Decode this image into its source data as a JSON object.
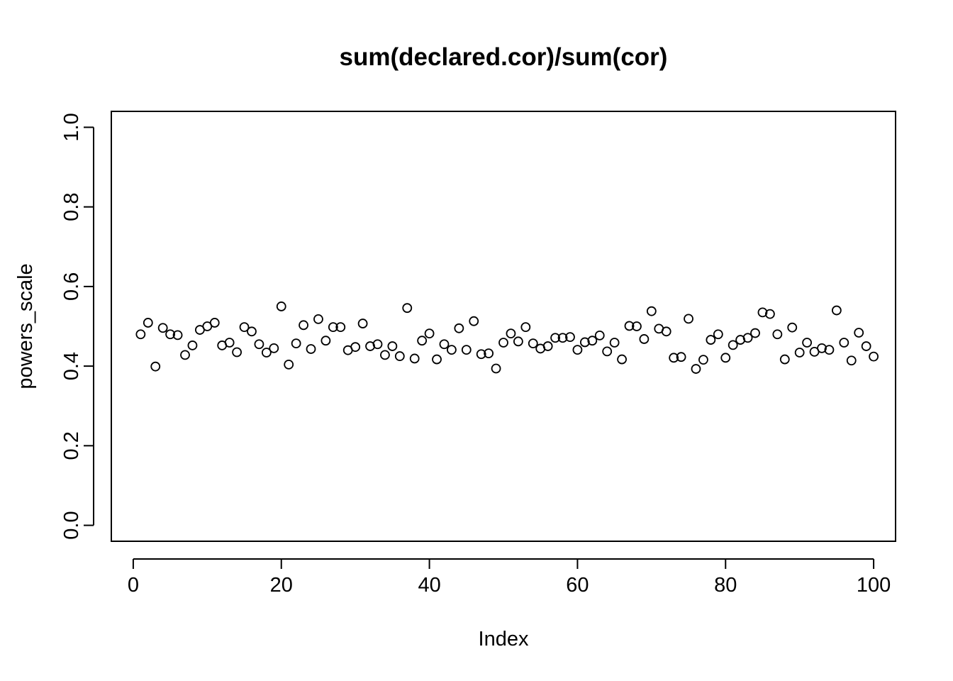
{
  "chart_data": {
    "type": "scatter",
    "title": "sum(declared.cor)/sum(cor)",
    "xlabel": "Index",
    "ylabel": "powers_scale",
    "xlim": [
      -2.96,
      102.96
    ],
    "ylim": [
      -0.04,
      1.04
    ],
    "xticks": [
      0,
      20,
      40,
      60,
      80,
      100
    ],
    "xtick_labels": [
      "0",
      "20",
      "40",
      "60",
      "80",
      "100"
    ],
    "yticks": [
      0.0,
      0.2,
      0.4,
      0.6,
      0.8,
      1.0
    ],
    "ytick_labels": [
      "0.0",
      "0.2",
      "0.4",
      "0.6",
      "0.8",
      "1.0"
    ],
    "grid": false,
    "marker": "open-circle",
    "x": [
      1,
      2,
      3,
      4,
      5,
      6,
      7,
      8,
      9,
      10,
      11,
      12,
      13,
      14,
      15,
      16,
      17,
      18,
      19,
      20,
      21,
      22,
      23,
      24,
      25,
      26,
      27,
      28,
      29,
      30,
      31,
      32,
      33,
      34,
      35,
      36,
      37,
      38,
      39,
      40,
      41,
      42,
      43,
      44,
      45,
      46,
      47,
      48,
      49,
      50,
      51,
      52,
      53,
      54,
      55,
      56,
      57,
      58,
      59,
      60,
      61,
      62,
      63,
      64,
      65,
      66,
      67,
      68,
      69,
      70,
      71,
      72,
      73,
      74,
      75,
      76,
      77,
      78,
      79,
      80,
      81,
      82,
      83,
      84,
      85,
      86,
      87,
      88,
      89,
      90,
      91,
      92,
      93,
      94,
      95,
      96,
      97,
      98,
      99,
      100
    ],
    "y": [
      0.48,
      0.509,
      0.399,
      0.496,
      0.48,
      0.478,
      0.428,
      0.452,
      0.491,
      0.5,
      0.509,
      0.452,
      0.459,
      0.435,
      0.498,
      0.487,
      0.455,
      0.434,
      0.445,
      0.55,
      0.404,
      0.457,
      0.503,
      0.443,
      0.518,
      0.464,
      0.498,
      0.498,
      0.44,
      0.448,
      0.507,
      0.45,
      0.455,
      0.428,
      0.45,
      0.425,
      0.546,
      0.419,
      0.464,
      0.482,
      0.417,
      0.455,
      0.441,
      0.495,
      0.441,
      0.513,
      0.43,
      0.432,
      0.394,
      0.459,
      0.482,
      0.462,
      0.498,
      0.457,
      0.444,
      0.45,
      0.471,
      0.471,
      0.473,
      0.441,
      0.46,
      0.464,
      0.477,
      0.437,
      0.459,
      0.417,
      0.501,
      0.5,
      0.468,
      0.538,
      0.494,
      0.487,
      0.421,
      0.423,
      0.519,
      0.393,
      0.416,
      0.466,
      0.48,
      0.421,
      0.453,
      0.466,
      0.471,
      0.483,
      0.535,
      0.531,
      0.48,
      0.417,
      0.497,
      0.434,
      0.459,
      0.436,
      0.445,
      0.441,
      0.54,
      0.459,
      0.414,
      0.484,
      0.45,
      0.424
    ]
  }
}
